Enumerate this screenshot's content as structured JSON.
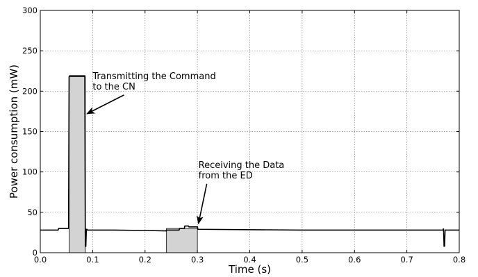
{
  "chart_data": {
    "type": "line",
    "title": "",
    "xlabel": "Time (s)",
    "ylabel": "Power consumption (mW)",
    "xlim": [
      0.0,
      0.8
    ],
    "ylim": [
      0,
      300
    ],
    "grid": true,
    "xticks": [
      "0.0",
      "0.1",
      "0.2",
      "0.3",
      "0.4",
      "0.5",
      "0.6",
      "0.7",
      "0.8"
    ],
    "yticks": [
      "0",
      "50",
      "100",
      "150",
      "200",
      "250",
      "300"
    ],
    "series": [
      {
        "color": "#000000",
        "x": [
          0.0,
          0.034,
          0.035,
          0.054,
          0.055,
          0.056,
          0.085,
          0.086,
          0.087,
          0.088,
          0.089,
          0.09,
          0.091,
          0.14,
          0.2,
          0.24,
          0.241,
          0.265,
          0.266,
          0.275,
          0.276,
          0.283,
          0.284,
          0.3,
          0.301,
          0.5,
          0.769,
          0.77,
          0.771,
          0.772,
          0.773,
          0.774,
          0.8
        ],
        "y": [
          28,
          28,
          30,
          30,
          218,
          219,
          219,
          8,
          8,
          29,
          29,
          28,
          28,
          28,
          27.5,
          27,
          28,
          28,
          30,
          30,
          33,
          33,
          32,
          32,
          29,
          28,
          28,
          30,
          8,
          8,
          28,
          28,
          28
        ]
      }
    ],
    "fill_regions": [
      {
        "x0": 0.055,
        "x1": 0.086,
        "y": 218,
        "color": "#d3d3d3"
      },
      {
        "x0": 0.241,
        "x1": 0.3,
        "y": 30,
        "color": "#d3d3d3"
      }
    ],
    "annotations": [
      {
        "lines": [
          "Transmitting the Command",
          "to the CN"
        ],
        "text_x": 0.1,
        "text_y": 215,
        "arrow_to": [
          0.089,
          172
        ]
      },
      {
        "lines": [
          "Receiving the Data",
          "from the ED"
        ],
        "text_x": 0.302,
        "text_y": 105,
        "arrow_to": [
          0.302,
          36
        ]
      }
    ]
  }
}
